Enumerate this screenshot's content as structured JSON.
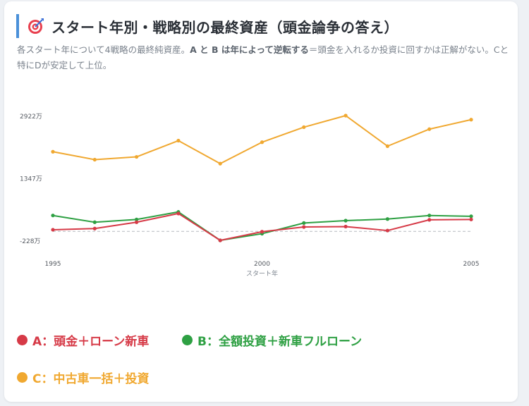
{
  "header": {
    "icon": "target-icon",
    "title": "スタート年別・戦略別の最終資産（頭金論争の答え）",
    "desc_part1": "各スタート年について4戦略の最終純資産。",
    "desc_bold": "A と B は年によって逆転する",
    "desc_part2": "＝頭金を入れるか投資に回すかは正解がない。Cと特にDが安定して上位。"
  },
  "chart_data": {
    "type": "line",
    "x": [
      1995,
      1996,
      1997,
      1998,
      1999,
      2000,
      2001,
      2002,
      2003,
      2004,
      2005
    ],
    "xticks": [
      1995,
      2000,
      2005
    ],
    "xtick_labels": [
      "1995",
      "2000",
      "2005"
    ],
    "xlabel": "スタート年",
    "ylabel": "",
    "ylim": [
      -228,
      2922
    ],
    "yticks": [
      2922,
      1347,
      -228
    ],
    "ytick_labels": [
      "2922万",
      "1347万",
      "-228万"
    ],
    "baseline": 0,
    "series": [
      {
        "name": "C：中古車一括＋投資",
        "color": "#f0a830",
        "values": [
          2010,
          1810,
          1880,
          2290,
          1710,
          2250,
          2630,
          2922,
          2150,
          2580,
          2820
        ]
      },
      {
        "name": "B：全額投資＋新車フルローン",
        "color": "#2ea043",
        "values": [
          400,
          230,
          300,
          490,
          -228,
          -60,
          210,
          270,
          310,
          400,
          380
        ]
      },
      {
        "name": "A：頭金＋ローン新車",
        "color": "#d63a47",
        "values": [
          40,
          70,
          230,
          450,
          -228,
          -10,
          110,
          120,
          20,
          290,
          300
        ]
      }
    ]
  },
  "legend": {
    "a": {
      "label": "A：頭金＋ローン新車",
      "color": "#d63a47"
    },
    "b": {
      "label": "B：全額投資＋新車フルローン",
      "color": "#2ea043"
    },
    "c": {
      "label": "C：中古車一括＋投資",
      "color": "#f0a830"
    }
  }
}
